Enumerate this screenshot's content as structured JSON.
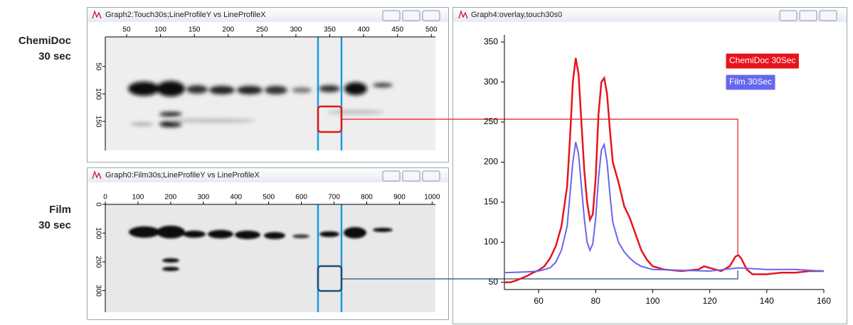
{
  "side_labels": [
    [
      "ChemiDoc",
      "30 sec"
    ],
    [
      "Film",
      "30 sec"
    ]
  ],
  "windows": [
    {
      "title": "Graph2:Touch30s;LineProfileY vs LineProfileX",
      "xlim": [
        18.5,
        506
      ],
      "xticks": [
        50,
        100,
        150,
        200,
        250,
        300,
        350,
        400,
        450,
        500
      ],
      "ylim": [
        -4,
        203
      ],
      "yticks": [
        50,
        100,
        150
      ]
    },
    {
      "title": "Graph0:Film30s;LineProfileY vs LineProfileX",
      "xlim": [
        0,
        1010
      ],
      "xticks": [
        0,
        100,
        200,
        300,
        400,
        500,
        600,
        700,
        800,
        900,
        1000
      ],
      "ylim": [
        0,
        375
      ],
      "yticks": [
        0,
        100,
        200,
        300
      ]
    },
    {
      "title": "Graph4:overlay,touch30s0",
      "chart": {
        "type": "line",
        "xlim": [
          48,
          160
        ],
        "xticks": [
          60,
          80,
          100,
          120,
          140,
          160
        ],
        "ylim": [
          41,
          359
        ],
        "yticks": [
          50,
          100,
          150,
          200,
          250,
          300,
          350
        ],
        "series": [
          {
            "name": "ChemiDoc 30Sec",
            "color": "#e8141c",
            "x": [
              48,
              50,
              52,
              54,
              56,
              58,
              60,
              62,
              64,
              66,
              68,
              70,
              71,
              72,
              73,
              74,
              75,
              76,
              77,
              78,
              79,
              80,
              81,
              82,
              83,
              84,
              85,
              86,
              88,
              90,
              92,
              94,
              96,
              98,
              100,
              104,
              110,
              116,
              118,
              120,
              124,
              127,
              129,
              130,
              131,
              133,
              135,
              140,
              145,
              150,
              155,
              160
            ],
            "values": [
              50,
              50,
              52,
              55,
              58,
              62,
              65,
              70,
              80,
              95,
              120,
              170,
              230,
              300,
              330,
              310,
              250,
              190,
              150,
              128,
              135,
              180,
              260,
              300,
              305,
              285,
              240,
              200,
              175,
              145,
              130,
              110,
              90,
              78,
              70,
              66,
              64,
              66,
              70,
              68,
              64,
              70,
              82,
              84,
              80,
              66,
              60,
              60,
              62,
              62,
              64,
              64
            ]
          },
          {
            "name": "Film 30Sec",
            "color": "#6666ee",
            "x": [
              48,
              56,
              60,
              64,
              66,
              68,
              70,
              71,
              72,
              73,
              74,
              75,
              76,
              77,
              78,
              79,
              80,
              81,
              82,
              83,
              84,
              85,
              86,
              88,
              90,
              92,
              94,
              96,
              100,
              110,
              120,
              130,
              140,
              150,
              160
            ],
            "values": [
              62,
              63,
              64,
              68,
              75,
              90,
              120,
              160,
              200,
              225,
              210,
              170,
              130,
              100,
              90,
              98,
              130,
              180,
              215,
              222,
              200,
              160,
              125,
              100,
              88,
              80,
              74,
              70,
              66,
              65,
              64,
              68,
              66,
              66,
              64
            ]
          }
        ]
      }
    }
  ]
}
